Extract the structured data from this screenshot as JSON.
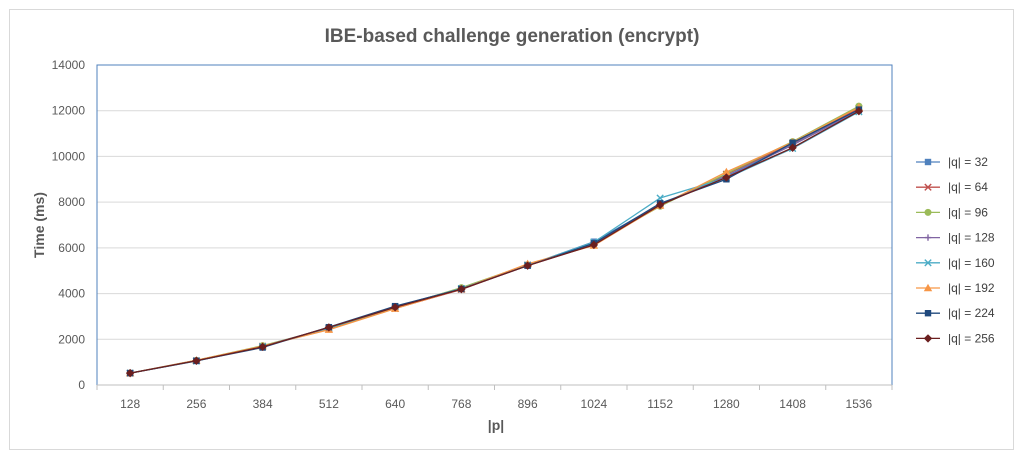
{
  "chart_data": {
    "type": "line",
    "title": "IBE-based challenge generation (encrypt)",
    "xlabel": "|p|",
    "ylabel": "Time (ms)",
    "categories": [
      "128",
      "256",
      "384",
      "512",
      "640",
      "768",
      "896",
      "1024",
      "1152",
      "1280",
      "1408",
      "1536"
    ],
    "ylim": [
      0,
      14000
    ],
    "yticks": [
      0,
      2000,
      4000,
      6000,
      8000,
      10000,
      12000,
      14000
    ],
    "grid": true,
    "legend_position": "right",
    "series": [
      {
        "name": "|q| = 32",
        "color": "#4f81bd",
        "marker": "square",
        "values": [
          520,
          1050,
          1680,
          2500,
          3420,
          4230,
          5230,
          6270,
          7900,
          9150,
          10550,
          12020
        ]
      },
      {
        "name": "|q| = 64",
        "color": "#c0504d",
        "marker": "x",
        "values": [
          520,
          1060,
          1700,
          2470,
          3350,
          4180,
          5250,
          6130,
          7880,
          9220,
          10580,
          12100
        ]
      },
      {
        "name": "|q| = 96",
        "color": "#9bbb59",
        "marker": "circle",
        "values": [
          520,
          1080,
          1720,
          2480,
          3380,
          4260,
          5260,
          6180,
          7820,
          9250,
          10650,
          12200
        ]
      },
      {
        "name": "|q| = 128",
        "color": "#8064a2",
        "marker": "plus",
        "values": [
          520,
          1070,
          1690,
          2510,
          3400,
          4200,
          5220,
          6150,
          7900,
          9100,
          10500,
          12000
        ]
      },
      {
        "name": "|q| = 160",
        "color": "#4bacc6",
        "marker": "x",
        "values": [
          520,
          1050,
          1680,
          2490,
          3420,
          4220,
          5240,
          6250,
          8180,
          9050,
          10350,
          11950
        ]
      },
      {
        "name": "|q| = 192",
        "color": "#f79646",
        "marker": "triangle",
        "values": [
          520,
          1080,
          1700,
          2420,
          3340,
          4200,
          5300,
          6100,
          7850,
          9320,
          10620,
          12150
        ]
      },
      {
        "name": "|q| = 224",
        "color": "#1f497d",
        "marker": "square",
        "values": [
          520,
          1060,
          1640,
          2530,
          3450,
          4200,
          5220,
          6200,
          7950,
          9000,
          10600,
          12050
        ]
      },
      {
        "name": "|q| = 256",
        "color": "#6b1f1f",
        "marker": "diamond",
        "values": [
          520,
          1060,
          1670,
          2520,
          3400,
          4190,
          5220,
          6130,
          7880,
          9080,
          10380,
          11980
        ]
      }
    ]
  }
}
